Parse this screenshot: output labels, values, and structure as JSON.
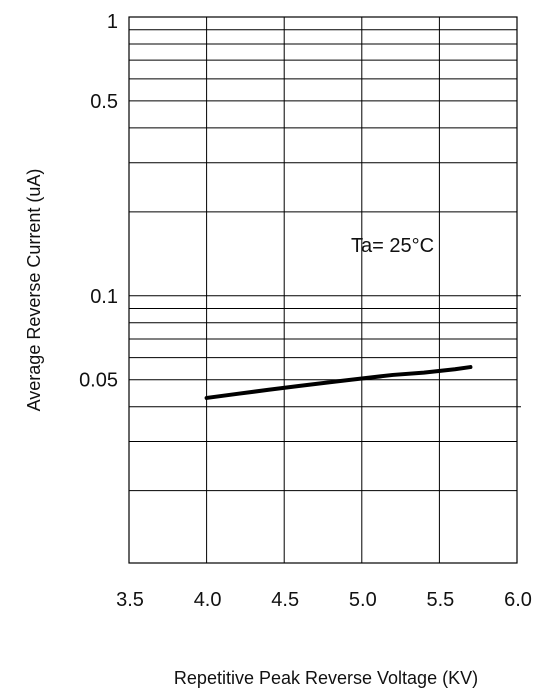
{
  "chart_data": {
    "type": "line",
    "title": "",
    "xlabel": "Repetitive Peak Reverse Voltage (KV)",
    "ylabel": "Average Reverse  Current  (uA)",
    "x_tick_labels": [
      "3.5",
      "4.0",
      "4.5",
      "5.0",
      "5.5",
      "6.0"
    ],
    "x_tick_values": [
      3.5,
      4.0,
      4.5,
      5.0,
      5.5,
      6.0
    ],
    "y_tick_labels": [
      "1",
      "0.5",
      "0.1",
      "0.05"
    ],
    "y_tick_values": [
      1,
      0.5,
      0.1,
      0.05
    ],
    "xlim": [
      3.5,
      6.0
    ],
    "ylim": [
      0.011,
      1
    ],
    "y_scale": "log",
    "grid": true,
    "annotation": "Ta= 25°C",
    "series": [
      {
        "x": [
          4.0,
          4.2,
          4.4,
          4.6,
          4.8,
          5.0,
          5.2,
          5.4,
          5.6,
          5.7
        ],
        "y": [
          0.043,
          0.0445,
          0.046,
          0.0475,
          0.049,
          0.0505,
          0.052,
          0.053,
          0.0545,
          0.0555
        ],
        "color": "#000000"
      }
    ]
  }
}
